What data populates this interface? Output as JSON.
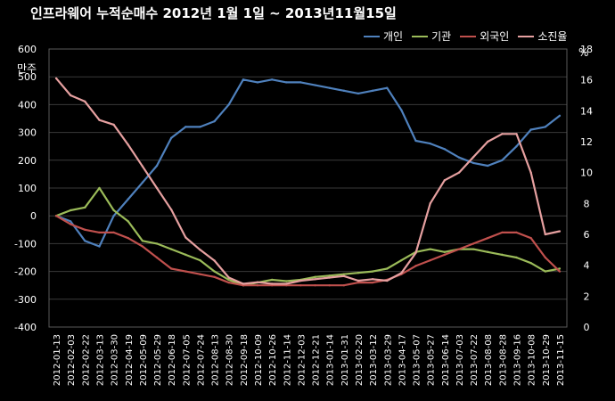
{
  "chart_data": {
    "type": "line",
    "title": "인프라웨어 누적순매수  2012년 1월 1일 ~ 2013년11월15일",
    "ylabel_left": "만주",
    "ylabel_right": "%",
    "ylim_left": [
      -400,
      600
    ],
    "ylim_right": [
      0,
      18
    ],
    "yticks_left": [
      600,
      500,
      400,
      300,
      200,
      100,
      0,
      -100,
      -200,
      -300,
      -400
    ],
    "yticks_right": [
      18,
      16,
      14,
      12,
      10,
      8,
      6,
      4,
      2,
      0
    ],
    "grid": true,
    "legend_position": "top-right",
    "categories": [
      "2012-01-13",
      "2012-02-03",
      "2012-02-22",
      "2012-03-13",
      "2012-03-30",
      "2012-04-19",
      "2012-05-09",
      "2012-05-29",
      "2012-06-18",
      "2012-07-05",
      "2012-07-24",
      "2012-08-13",
      "2012-08-30",
      "2012-09-18",
      "2012-10-09",
      "2012-10-26",
      "2012-11-14",
      "2012-12-03",
      "2012-12-21",
      "2013-01-14",
      "2013-01-31",
      "2013-02-20",
      "2013-03-12",
      "2013-03-29",
      "2013-04-17",
      "2013-05-07",
      "2013-05-27",
      "2013-06-14",
      "2013-07-03",
      "2013-07-22",
      "2013-08-08",
      "2013-08-28",
      "2013-09-16",
      "2013-10-08",
      "2013-10-29",
      "2013-11-15"
    ],
    "series": [
      {
        "name": "개인",
        "axis": "left",
        "color": "#4f81bd",
        "values": [
          0,
          -20,
          -90,
          -110,
          0,
          60,
          120,
          180,
          280,
          320,
          320,
          340,
          400,
          490,
          480,
          490,
          480,
          480,
          470,
          460,
          450,
          440,
          450,
          460,
          380,
          270,
          260,
          240,
          210,
          190,
          180,
          200,
          250,
          310,
          320,
          360
        ]
      },
      {
        "name": "기관",
        "axis": "left",
        "color": "#9bbb59",
        "values": [
          0,
          20,
          30,
          100,
          20,
          -20,
          -90,
          -100,
          -120,
          -140,
          -160,
          -200,
          -230,
          -250,
          -240,
          -230,
          -235,
          -230,
          -220,
          -215,
          -210,
          -205,
          -200,
          -190,
          -160,
          -130,
          -120,
          -130,
          -120,
          -120,
          -130,
          -140,
          -150,
          -170,
          -200,
          -190
        ]
      },
      {
        "name": "외국인",
        "axis": "left",
        "color": "#c0504d",
        "values": [
          0,
          -30,
          -50,
          -60,
          -60,
          -80,
          -110,
          -150,
          -190,
          -200,
          -210,
          -220,
          -240,
          -250,
          -250,
          -250,
          -250,
          -250,
          -250,
          -250,
          -250,
          -240,
          -240,
          -230,
          -210,
          -180,
          -160,
          -140,
          -120,
          -100,
          -80,
          -60,
          -60,
          -80,
          -150,
          -200
        ]
      },
      {
        "name": "소진율",
        "axis": "right",
        "color": "#e6a0a0",
        "values": [
          16.1,
          15.0,
          14.6,
          13.4,
          13.1,
          11.8,
          10.4,
          9.0,
          7.6,
          5.8,
          5.0,
          4.3,
          3.2,
          2.8,
          2.9,
          2.8,
          2.8,
          3.0,
          3.1,
          3.2,
          3.3,
          3.0,
          3.1,
          3.0,
          3.5,
          4.8,
          8.0,
          9.5,
          10.0,
          11.0,
          12.0,
          12.5,
          12.5,
          10.0,
          6.0,
          6.2
        ]
      }
    ]
  }
}
